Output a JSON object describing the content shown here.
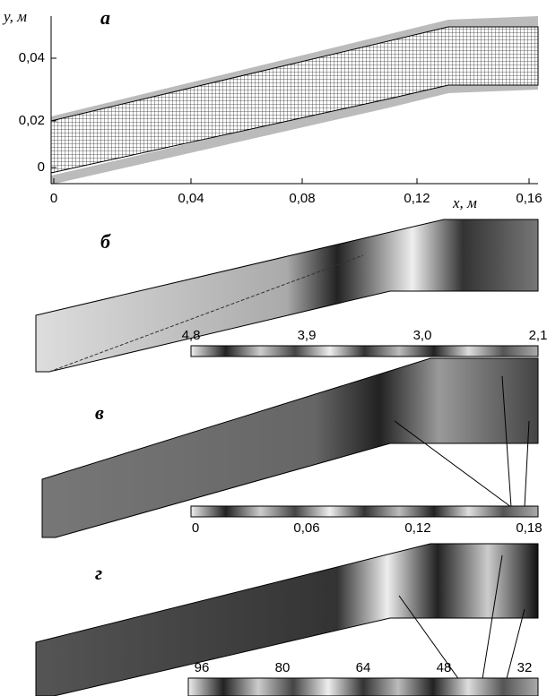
{
  "panel_a": {
    "label": "а",
    "y_axis_label": "y, м",
    "x_axis_label": "x, м",
    "yticks": [
      "0",
      "0,02",
      "0,04"
    ],
    "xticks": [
      "0",
      "0,04",
      "0,08",
      "0,12",
      "0,16"
    ]
  },
  "panel_b": {
    "label": "б",
    "colorbar_ticks": [
      "4,8",
      "3,9",
      "3,0",
      "2,1"
    ]
  },
  "panel_v": {
    "label": "в",
    "colorbar_ticks": [
      "0",
      "0,06",
      "0,12",
      "0,18"
    ]
  },
  "panel_g": {
    "label": "г",
    "colorbar_ticks": [
      "96",
      "80",
      "64",
      "48",
      "32"
    ]
  }
}
